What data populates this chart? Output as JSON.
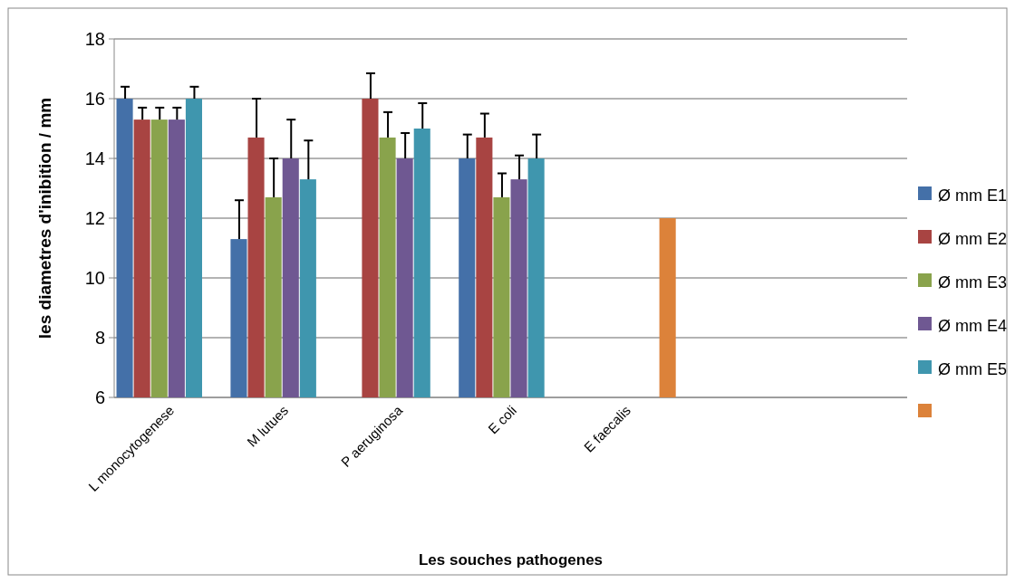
{
  "chart_data": {
    "type": "bar",
    "xlabel": "Les souches pathogenes",
    "ylabel": "les diametres  d'inibition / mm",
    "categories": [
      "L monocytogenese",
      "M lutues",
      "P aeruginosa",
      "E coli",
      "E faecalis",
      null,
      null
    ],
    "ylim": [
      6,
      18
    ],
    "yticks": [
      6,
      8,
      10,
      12,
      14,
      16,
      18
    ],
    "grid": "y",
    "legend": "right",
    "series": [
      {
        "name": "Ø mm E1",
        "color": "#4470a8",
        "values": [
          16,
          11.3,
          null,
          14,
          null,
          null,
          null
        ],
        "errors": [
          0.4,
          1.3,
          null,
          0.8,
          null,
          null,
          null
        ]
      },
      {
        "name": "Ø mm E2",
        "color": "#a84442",
        "values": [
          15.3,
          14.7,
          16,
          14.7,
          null,
          null,
          null
        ],
        "errors": [
          0.4,
          1.3,
          0.85,
          0.8,
          null,
          null,
          null
        ]
      },
      {
        "name": "Ø mm E3",
        "color": "#89a34c",
        "values": [
          15.3,
          12.7,
          14.7,
          12.7,
          null,
          null,
          null
        ],
        "errors": [
          0.4,
          1.3,
          0.85,
          0.8,
          null,
          null,
          null
        ]
      },
      {
        "name": "Ø mm E4",
        "color": "#6f5892",
        "values": [
          15.3,
          14,
          14,
          13.3,
          null,
          null,
          null
        ],
        "errors": [
          0.4,
          1.3,
          0.85,
          0.8,
          null,
          null,
          null
        ]
      },
      {
        "name": "Ø mm E5",
        "color": "#3f96ae",
        "values": [
          16,
          13.3,
          15,
          14,
          null,
          null,
          null
        ],
        "errors": [
          0.4,
          1.3,
          0.85,
          0.8,
          null,
          null,
          null
        ]
      },
      {
        "color": "#dc823a",
        "values": [
          null,
          null,
          null,
          null,
          12,
          null,
          null
        ]
      }
    ]
  }
}
